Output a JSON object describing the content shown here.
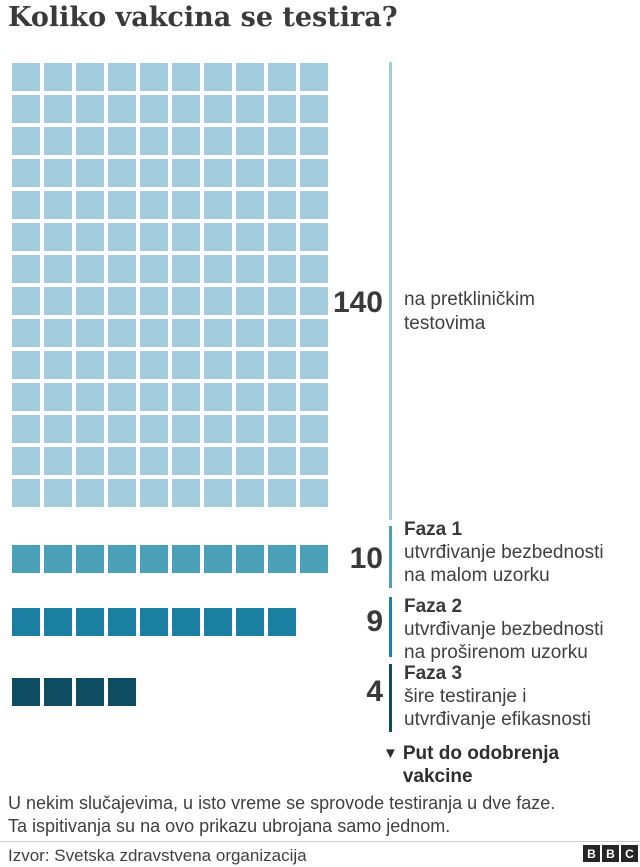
{
  "title": "Koliko vakcina se testira?",
  "chart_data": {
    "type": "waffle",
    "title": "Koliko vakcina se testira?",
    "grid_columns": 10,
    "total_units": 163,
    "legend_position": "right",
    "groups": [
      {
        "id": "preclinical",
        "count": 140,
        "count_label": "140",
        "color": "#a2cbdc",
        "heading": "",
        "lines": [
          "na pretkliničkim",
          "testovima"
        ]
      },
      {
        "id": "faza-1",
        "count": 10,
        "count_label": "10",
        "color": "#4aa1b8",
        "heading": "Faza 1",
        "lines": [
          "utvrđivanje bezbednosti",
          "na malom uzorku"
        ]
      },
      {
        "id": "faza-2",
        "count": 9,
        "count_label": "9",
        "color": "#1a7fa0",
        "heading": "Faza 2",
        "lines": [
          "utvrđivanje bezbednosti",
          "na proširenom uzorku"
        ]
      },
      {
        "id": "faza-3",
        "count": 4,
        "count_label": "4",
        "color": "#0e4d61",
        "heading": "Faza 3",
        "lines": [
          "šire testiranje i",
          "utvrđivanje efikasnosti"
        ]
      }
    ],
    "path_label": {
      "arrow": "▼",
      "line1": "Put do odobrenja",
      "line2": "vakcine"
    }
  },
  "footer": {
    "note_line1": "U nekim slučajevima, u isto vreme se sprovode testiranja u dve faze.",
    "note_line2": "Ta ispitivanja su na ovo prikazu ubrojana samo jednom.",
    "source": "Izvor: Svetska zdravstvena organizacija",
    "logo": {
      "b1": "B",
      "b2": "B",
      "b3": "C"
    }
  }
}
